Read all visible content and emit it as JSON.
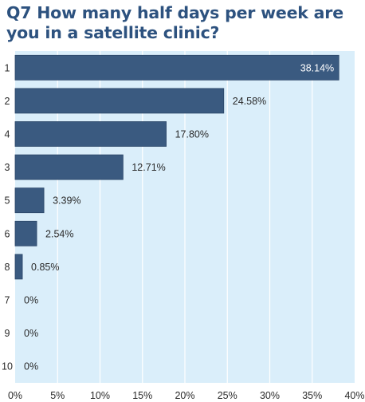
{
  "chart_data": {
    "type": "bar",
    "orientation": "horizontal",
    "title": "Q7 How many half days per week are you in a satellite clinic?",
    "categories": [
      "1",
      "2",
      "4",
      "3",
      "5",
      "6",
      "8",
      "7",
      "9",
      "10"
    ],
    "values": [
      38.14,
      24.58,
      17.8,
      12.71,
      3.39,
      2.54,
      0.85,
      0,
      0,
      0
    ],
    "value_labels": [
      "38.14%",
      "24.58%",
      "17.80%",
      "12.71%",
      "3.39%",
      "2.54%",
      "0.85%",
      "0%",
      "0%",
      "0%"
    ],
    "xlim": [
      0,
      40
    ],
    "x_ticks": [
      0,
      5,
      10,
      15,
      20,
      25,
      30,
      35,
      40
    ],
    "x_tick_labels": [
      "0%",
      "5%",
      "10%",
      "15%",
      "20%",
      "25%",
      "30%",
      "35%",
      "40%"
    ],
    "xlabel": "",
    "ylabel": "",
    "grid": true,
    "colors": {
      "bar": "#3a5a80",
      "bar_stroke": "#2b4668",
      "plot_background": "#daeefa",
      "grid": "#ffffff",
      "title": "#2d527f"
    }
  }
}
